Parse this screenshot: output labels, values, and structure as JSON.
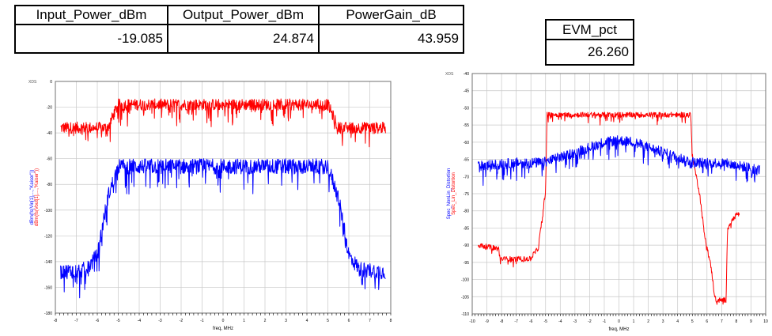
{
  "tables": {
    "power": {
      "headers": [
        "Input_Power_dBm",
        "Output_Power_dBm",
        "PowerGain_dB"
      ],
      "values": [
        "-19.085",
        "24.874",
        "43.959"
      ]
    },
    "evm": {
      "headers": [
        "EVM_pct"
      ],
      "values": [
        "26.260"
      ]
    }
  },
  "colors": {
    "red": "#ff0000",
    "blue": "#0000ff",
    "grid": "#c8c8c8",
    "axis": "#707070"
  },
  "chart_data": [
    {
      "type": "line",
      "corner_label": "XDS",
      "xlabel": "freq, MHz",
      "ylabel_lines": [
        {
          "text": "dBm(fs(Vin[1],...,\"Kaiser\"))",
          "color": "#0000ff"
        },
        {
          "text": "dBm(fs(Vout[1],...,\"Kaiser\"))",
          "color": "#ff0000"
        }
      ],
      "xlim": [
        -8,
        8
      ],
      "ylim": [
        -180,
        0
      ],
      "x_ticks": [
        -8,
        -7,
        -6,
        -5,
        -4,
        -3,
        -2,
        -1,
        0,
        1,
        2,
        3,
        4,
        5,
        6,
        7,
        8
      ],
      "y_ticks": [
        0,
        -20,
        -40,
        -60,
        -80,
        -100,
        -120,
        -140,
        -160,
        -180
      ],
      "grid": true,
      "series": [
        {
          "color": "#ff0000",
          "x": [
            -7.75,
            -5.5,
            -5.0,
            5.0,
            5.5,
            7.75
          ],
          "y": [
            -36,
            -36,
            -18,
            -18,
            -36,
            -36
          ],
          "noise": 9
        },
        {
          "color": "#0000ff",
          "x": [
            -7.75,
            -6.5,
            -6.0,
            -5.5,
            -5.0,
            5.0,
            5.5,
            6.0,
            6.5,
            7.75
          ],
          "y": [
            -148,
            -146,
            -135,
            -90,
            -66,
            -66,
            -90,
            -135,
            -146,
            -148
          ],
          "noise": 12
        }
      ]
    },
    {
      "type": "line",
      "corner_label": "XDS",
      "xlabel": "freq, MHz",
      "ylabel_lines": [
        {
          "text": "Spec_NonLin_Distortion",
          "color": "#0000ff"
        },
        {
          "text": "Spec_Lin_Distortion",
          "color": "#ff0000"
        }
      ],
      "xlim": [
        -10,
        10
      ],
      "ylim": [
        -110,
        -40
      ],
      "x_ticks": [
        -10,
        -9,
        -8,
        -7,
        -6,
        -5,
        -4,
        -3,
        -2,
        -1,
        0,
        1,
        2,
        3,
        4,
        5,
        6,
        7,
        8,
        9,
        10
      ],
      "y_ticks": [
        -40,
        -45,
        -50,
        -55,
        -60,
        -65,
        -70,
        -75,
        -80,
        -85,
        -90,
        -95,
        -100,
        -105,
        -110
      ],
      "grid": true,
      "series": [
        {
          "color": "#ff0000",
          "x": [
            -9.6,
            -8.2,
            -8.1,
            -6.9,
            -6.0,
            -5.9,
            -5.5,
            -5.0,
            -4.9,
            4.9,
            5.0,
            5.5,
            5.8,
            6.3,
            6.5,
            6.6,
            7.3,
            7.4,
            8.0,
            8.2
          ],
          "y": [
            -90,
            -91,
            -94,
            -94,
            -94,
            -93,
            -91,
            -74,
            -52,
            -52,
            -64,
            -75,
            -86,
            -97,
            -104,
            -106,
            -106,
            -85,
            -81,
            -81
          ],
          "noise": 1.5
        },
        {
          "color": "#0000ff",
          "x": [
            -9.6,
            -7,
            -5.2,
            -3,
            -1,
            0,
            1,
            3,
            5.2,
            7,
            9.6
          ],
          "y": [
            -67,
            -66,
            -66,
            -63,
            -60,
            -59.5,
            -60,
            -63,
            -66,
            -66,
            -68
          ],
          "noise": 3
        }
      ]
    }
  ]
}
